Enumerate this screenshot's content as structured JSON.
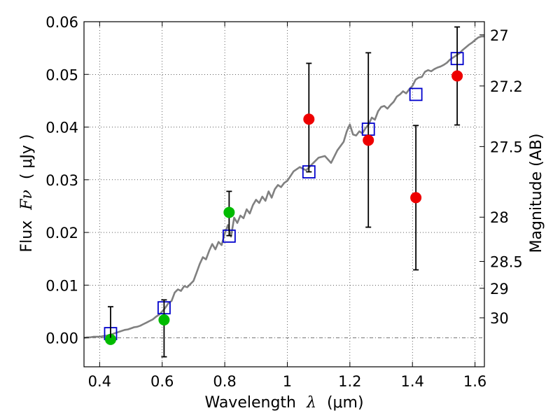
{
  "chart_data": {
    "type": "scatter",
    "title": "",
    "xlabel": "Wavelength",
    "xlabel_symbol": "λ",
    "xlabel_unit": "(μm)",
    "ylabel": "Flux",
    "ylabel_symbol": "Fν",
    "ylabel_unit": "( μJy )",
    "right_ylabel": "Magnitude (AB)",
    "xlim": [
      0.35,
      1.63
    ],
    "ylim": [
      -0.0055,
      0.06
    ],
    "x_ticks": [
      0.4,
      0.6,
      0.8,
      1.0,
      1.2,
      1.4,
      1.6
    ],
    "x_tick_labels": [
      "0.4",
      "0.6",
      "0.8",
      "1",
      "1.2",
      "1.4",
      "1.6"
    ],
    "y_ticks": [
      0.0,
      0.01,
      0.02,
      0.03,
      0.04,
      0.05,
      0.06
    ],
    "y_tick_labels": [
      "0.00",
      "0.01",
      "0.02",
      "0.03",
      "0.04",
      "0.05",
      "0.06"
    ],
    "right_ticks": [
      {
        "mag": 27,
        "label": "27",
        "flux": 0.0575
      },
      {
        "mag": 27.2,
        "label": "27.2",
        "flux": 0.0478
      },
      {
        "mag": 27.5,
        "label": "27.5",
        "flux": 0.0363
      },
      {
        "mag": 28,
        "label": "28",
        "flux": 0.0229
      },
      {
        "mag": 28.5,
        "label": "28.5",
        "flux": 0.0145
      },
      {
        "mag": 29,
        "label": "29",
        "flux": 0.0094
      },
      {
        "mag": 30,
        "label": "30",
        "flux": 0.0038
      }
    ],
    "grid": true,
    "series": [
      {
        "name": "model spectrum",
        "kind": "line",
        "color": "#808080",
        "x": [
          0.35,
          0.36,
          0.37,
          0.38,
          0.39,
          0.4,
          0.41,
          0.42,
          0.43,
          0.44,
          0.45,
          0.46,
          0.47,
          0.48,
          0.49,
          0.5,
          0.51,
          0.52,
          0.53,
          0.54,
          0.55,
          0.56,
          0.57,
          0.58,
          0.59,
          0.6,
          0.61,
          0.62,
          0.63,
          0.64,
          0.65,
          0.66,
          0.67,
          0.68,
          0.69,
          0.7,
          0.71,
          0.72,
          0.73,
          0.74,
          0.75,
          0.76,
          0.77,
          0.78,
          0.79,
          0.8,
          0.81,
          0.82,
          0.83,
          0.84,
          0.85,
          0.86,
          0.87,
          0.88,
          0.89,
          0.9,
          0.91,
          0.92,
          0.93,
          0.94,
          0.95,
          0.96,
          0.97,
          0.98,
          0.99,
          1.0,
          1.02,
          1.04,
          1.06,
          1.08,
          1.1,
          1.12,
          1.14,
          1.16,
          1.18,
          1.19,
          1.2,
          1.21,
          1.22,
          1.23,
          1.24,
          1.25,
          1.26,
          1.27,
          1.28,
          1.29,
          1.3,
          1.31,
          1.32,
          1.33,
          1.34,
          1.35,
          1.36,
          1.37,
          1.38,
          1.39,
          1.4,
          1.41,
          1.42,
          1.43,
          1.44,
          1.45,
          1.46,
          1.47,
          1.48,
          1.49,
          1.5,
          1.51,
          1.52,
          1.53,
          1.54,
          1.55,
          1.56,
          1.57,
          1.58,
          1.59,
          1.6,
          1.61,
          1.62,
          1.63
        ],
        "y": [
          0.0,
          0.0001,
          0.0001,
          0.0002,
          0.0002,
          0.0002,
          0.0003,
          0.0004,
          0.0005,
          0.0007,
          0.0009,
          0.0011,
          0.0013,
          0.0015,
          0.0016,
          0.0018,
          0.002,
          0.0021,
          0.0023,
          0.0026,
          0.0029,
          0.0032,
          0.0035,
          0.004,
          0.0044,
          0.005,
          0.0057,
          0.0066,
          0.007,
          0.0086,
          0.0092,
          0.0089,
          0.0098,
          0.0096,
          0.0102,
          0.0108,
          0.0124,
          0.014,
          0.0153,
          0.0149,
          0.0165,
          0.0178,
          0.0168,
          0.0182,
          0.0176,
          0.0198,
          0.0214,
          0.0192,
          0.0228,
          0.0218,
          0.0232,
          0.0227,
          0.0244,
          0.0236,
          0.0252,
          0.0262,
          0.0256,
          0.0268,
          0.026,
          0.0278,
          0.0266,
          0.0282,
          0.029,
          0.0286,
          0.0294,
          0.0298,
          0.0316,
          0.0324,
          0.0318,
          0.033,
          0.0342,
          0.0345,
          0.0332,
          0.0356,
          0.0372,
          0.0392,
          0.0405,
          0.0386,
          0.0384,
          0.0392,
          0.0388,
          0.0398,
          0.0405,
          0.0418,
          0.0414,
          0.043,
          0.0438,
          0.044,
          0.0435,
          0.0442,
          0.0448,
          0.0458,
          0.0462,
          0.0468,
          0.0464,
          0.0472,
          0.0478,
          0.049,
          0.0494,
          0.0495,
          0.0505,
          0.0508,
          0.0506,
          0.051,
          0.0513,
          0.0515,
          0.0518,
          0.0522,
          0.0528,
          0.0532,
          0.0536,
          0.054,
          0.0546,
          0.0551,
          0.0556,
          0.056,
          0.0565,
          0.057,
          0.0572,
          0.0572
        ]
      },
      {
        "name": "model photometry",
        "kind": "open-square",
        "color": "#0000cc",
        "x": [
          0.435,
          0.606,
          0.814,
          1.069,
          1.259,
          1.411,
          1.543
        ],
        "y": [
          0.0008,
          0.0057,
          0.0193,
          0.0315,
          0.0396,
          0.0462,
          0.053
        ]
      },
      {
        "name": "detections",
        "kind": "filled-circle",
        "color": "#00bb00",
        "x": [
          0.435,
          0.606,
          0.814
        ],
        "y": [
          -0.0003,
          0.0034,
          0.0238
        ],
        "err_low": [
          null,
          0.007,
          0.0044
        ],
        "err_high": [
          null,
          0.0038,
          0.004
        ]
      },
      {
        "name": "measurements",
        "kind": "filled-circle",
        "color": "#ee0000",
        "x": [
          1.069,
          1.259,
          1.411,
          1.543
        ],
        "y": [
          0.0415,
          0.0375,
          0.0266,
          0.0497
        ],
        "err_low": [
          0.01,
          0.0165,
          0.0137,
          0.0093
        ],
        "err_high": [
          0.0106,
          0.0166,
          0.0137,
          0.0093
        ]
      },
      {
        "name": "upper limit",
        "kind": "errorbar-only",
        "color": "#000000",
        "x": [
          0.435
        ],
        "y_low": [
          0.0
        ],
        "y_high": [
          0.0059
        ]
      }
    ]
  }
}
